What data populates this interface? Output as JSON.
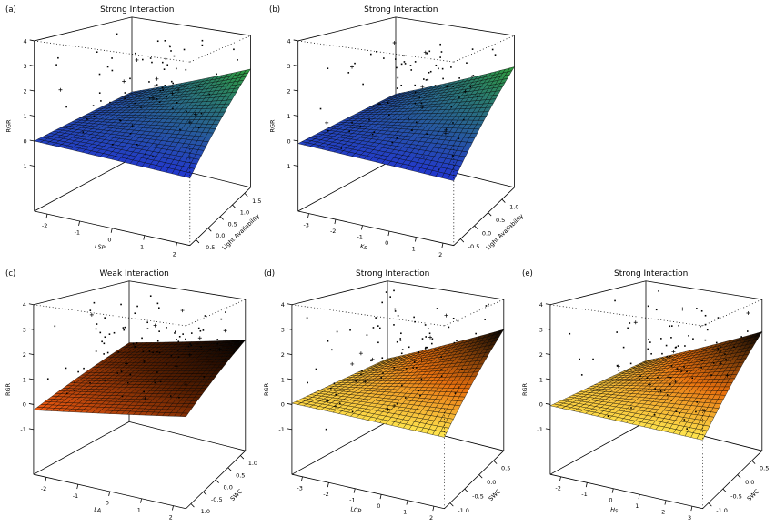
{
  "figure": {
    "background": "#ffffff",
    "description": "Five 3D perspective surface plots with scatter points (R persp style)"
  },
  "chart_data": [
    {
      "type": "scatter",
      "subtype": "3d-surface-with-scatter",
      "panel_label": "(a)",
      "title": "Strong Interaction",
      "xlabel": "LSP",
      "ylabel": "Light Availability",
      "zlabel": "RGR",
      "x_tick_labels": [
        "-2",
        "-1",
        "0",
        "1",
        "2"
      ],
      "x_tick_values": [
        -2,
        -1,
        0,
        1,
        2
      ],
      "y_tick_labels": [
        "-0.5",
        "0.0",
        "0.5",
        "1.0",
        "1.5"
      ],
      "y_tick_values": [
        -0.5,
        0,
        0.5,
        1,
        1.5
      ],
      "z_tick_labels": [
        "-1",
        "0",
        "1",
        "2",
        "3",
        "4"
      ],
      "z_tick_values": [
        -1,
        0,
        1,
        2,
        3,
        4
      ],
      "xlim": [
        -2.4,
        2.4
      ],
      "ylim": [
        -0.75,
        1.75
      ],
      "zlim": [
        -2.8,
        4
      ],
      "grid_on": false,
      "legend": null,
      "surface": {
        "base": 0.65,
        "slope_x": 0.45,
        "slope_y": 0.8,
        "interaction": 0.6,
        "palette": [
          [
            0,
            "#2236d0"
          ],
          [
            1,
            "#2f9e3c"
          ]
        ]
      },
      "points": {
        "count": 85,
        "seed": 11,
        "color": "#000000"
      },
      "grid_n": 26
    },
    {
      "type": "scatter",
      "subtype": "3d-surface-with-scatter",
      "panel_label": "(b)",
      "title": "Strong Interaction",
      "xlabel": "Ks",
      "ylabel": "Light Availability",
      "zlabel": "RGR",
      "x_tick_labels": [
        "-3",
        "-2",
        "-1",
        "0",
        "1",
        "2"
      ],
      "x_tick_values": [
        -3,
        -2,
        -1,
        0,
        1,
        2
      ],
      "y_tick_labels": [
        "-0.5",
        "0.0",
        "0.5",
        "1.0"
      ],
      "y_tick_values": [
        -0.5,
        0,
        0.5,
        1
      ],
      "z_tick_labels": [
        "-1",
        "0",
        "1",
        "2",
        "3",
        "4"
      ],
      "z_tick_values": [
        -1,
        0,
        1,
        2,
        3,
        4
      ],
      "xlim": [
        -3.4,
        2.4
      ],
      "ylim": [
        -0.75,
        1.45
      ],
      "zlim": [
        -2.8,
        4
      ],
      "grid_on": false,
      "legend": null,
      "surface": {
        "base": 0.6,
        "slope_x": 0.5,
        "slope_y": 0.85,
        "interaction": 0.65,
        "palette": [
          [
            0,
            "#2236d0"
          ],
          [
            1,
            "#2f9e3c"
          ]
        ]
      },
      "points": {
        "count": 90,
        "seed": 23,
        "color": "#000000"
      },
      "grid_n": 26
    },
    {
      "type": "scatter",
      "subtype": "3d-surface-with-scatter",
      "panel_label": "(c)",
      "title": "Weak Interaction",
      "xlabel": "LA",
      "ylabel": "SWC",
      "zlabel": "RGR",
      "x_tick_labels": [
        "-2",
        "-1",
        "0",
        "1",
        "2"
      ],
      "x_tick_values": [
        -2,
        -1,
        0,
        1,
        2
      ],
      "y_tick_labels": [
        "-1.0",
        "-0.5",
        "0.0",
        "0.5",
        "1.0"
      ],
      "y_tick_values": [
        -1,
        -0.5,
        0,
        0.5,
        1
      ],
      "z_tick_labels": [
        "-1",
        "0",
        "1",
        "2",
        "3",
        "4"
      ],
      "z_tick_values": [
        -1,
        0,
        1,
        2,
        3,
        4
      ],
      "xlim": [
        -2.4,
        2.4
      ],
      "ylim": [
        -1.2,
        1.2
      ],
      "zlim": [
        -2.8,
        4
      ],
      "grid_on": false,
      "legend": null,
      "surface": {
        "base": 0.9,
        "slope_x": 0.5,
        "slope_y": 0.7,
        "interaction": 0.08,
        "palette": [
          [
            0,
            "#f05a10"
          ],
          [
            0.5,
            "#581e00"
          ],
          [
            1,
            "#000000"
          ]
        ]
      },
      "points": {
        "count": 100,
        "seed": 37,
        "color": "#000000"
      },
      "grid_n": 26
    },
    {
      "type": "scatter",
      "subtype": "3d-surface-with-scatter",
      "panel_label": "(d)",
      "title": "Strong Interaction",
      "xlabel": "LCP",
      "ylabel": "SWC",
      "zlabel": "RGR",
      "x_tick_labels": [
        "-3",
        "-2",
        "-1",
        "0",
        "1",
        "2"
      ],
      "x_tick_values": [
        -3,
        -2,
        -1,
        0,
        1,
        2
      ],
      "y_tick_labels": [
        "-1.0",
        "-0.5",
        "0.0",
        "0.5"
      ],
      "y_tick_values": [
        -1,
        -0.5,
        0,
        0.5
      ],
      "z_tick_labels": [
        "-1",
        "0",
        "1",
        "2",
        "3",
        "4"
      ],
      "z_tick_values": [
        -1,
        0,
        1,
        2,
        3,
        4
      ],
      "xlim": [
        -3.4,
        2.4
      ],
      "ylim": [
        -1.2,
        0.85
      ],
      "zlim": [
        -2.8,
        4
      ],
      "grid_on": false,
      "legend": null,
      "surface": {
        "base": 0.7,
        "slope_x": 0.55,
        "slope_y": 0.75,
        "interaction": 0.65,
        "palette": [
          [
            0,
            "#ffe84f"
          ],
          [
            0.4,
            "#e8700e"
          ],
          [
            1,
            "#000000"
          ]
        ]
      },
      "points": {
        "count": 95,
        "seed": 51,
        "color": "#000000"
      },
      "grid_n": 26
    },
    {
      "type": "scatter",
      "subtype": "3d-surface-with-scatter",
      "panel_label": "(e)",
      "title": "Strong Interaction",
      "xlabel": "Hs",
      "ylabel": "SWC",
      "zlabel": "RGR",
      "x_tick_labels": [
        "-2",
        "-1",
        "0",
        "1",
        "2",
        "3"
      ],
      "x_tick_values": [
        -2,
        -1,
        0,
        1,
        2,
        3
      ],
      "y_tick_labels": [
        "-1.0",
        "-0.5",
        "0.0",
        "0.5"
      ],
      "y_tick_values": [
        -1,
        -0.5,
        0,
        0.5
      ],
      "z_tick_labels": [
        "-1",
        "0",
        "1",
        "2",
        "3",
        "4"
      ],
      "z_tick_values": [
        -1,
        0,
        1,
        2,
        3,
        4
      ],
      "xlim": [
        -2.4,
        3.4
      ],
      "ylim": [
        -1.2,
        0.85
      ],
      "zlim": [
        -2.8,
        4
      ],
      "grid_on": false,
      "legend": null,
      "surface": {
        "base": 0.6,
        "slope_x": 0.55,
        "slope_y": 0.75,
        "interaction": 0.65,
        "palette": [
          [
            0,
            "#ffe84f"
          ],
          [
            0.4,
            "#e8700e"
          ],
          [
            1,
            "#000000"
          ]
        ]
      },
      "points": {
        "count": 95,
        "seed": 67,
        "color": "#000000"
      },
      "grid_n": 26
    }
  ]
}
